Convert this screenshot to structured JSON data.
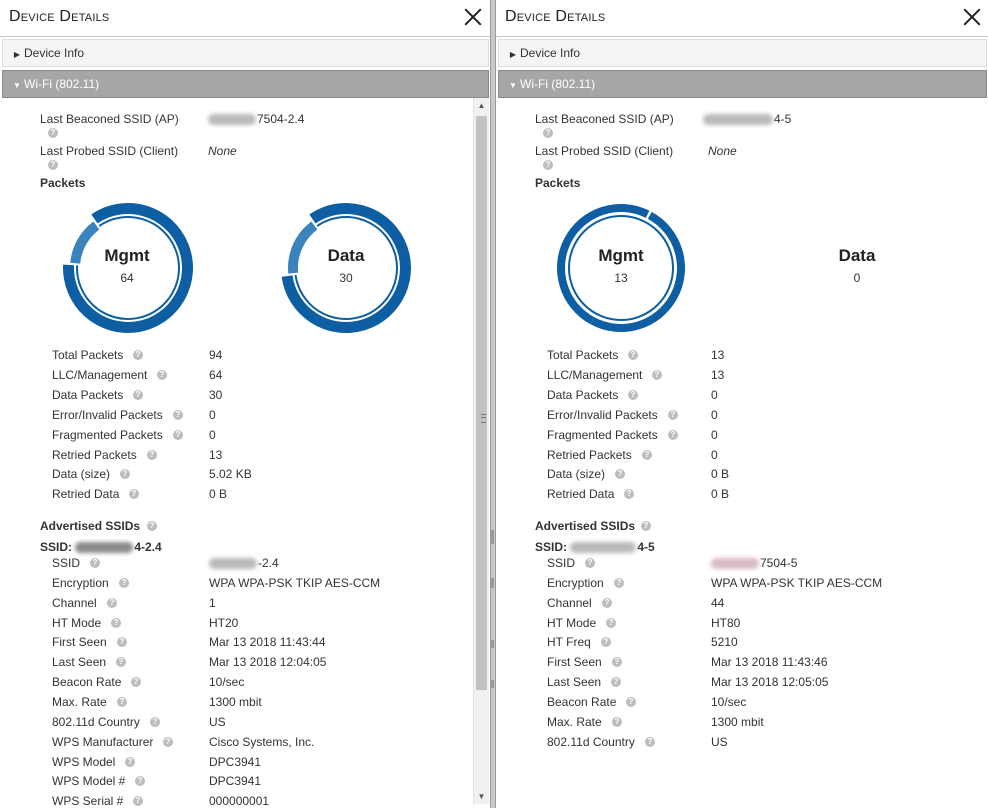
{
  "colors": {
    "dark_blue": "#0d5ea2",
    "light_blue": "#3b83bd",
    "header_bar": "#a6a6a6"
  },
  "left": {
    "title": "Device Details",
    "device_info_label": "Device Info",
    "wifi_label": "Wi-Fi (802.11)",
    "last_beaconed_label": "Last Beaconed SSID (AP)",
    "last_beaconed_value": "7504-2.4",
    "last_probed_label": "Last Probed SSID (Client)",
    "last_probed_value": "None",
    "packets_heading": "Packets",
    "donuts": [
      {
        "name": "Mgmt",
        "value": "64",
        "segments": [
          {
            "fraction": 0.86,
            "color": "#0d5ea2"
          },
          {
            "fraction": 0.14,
            "color": "#3b83bd"
          }
        ]
      },
      {
        "name": "Data",
        "value": "30",
        "segments": [
          {
            "fraction": 0.83,
            "color": "#0d5ea2"
          },
          {
            "fraction": 0.17,
            "color": "#3b83bd"
          }
        ]
      }
    ],
    "stats": [
      {
        "label": "Total Packets",
        "value": "94"
      },
      {
        "label": "LLC/Management",
        "value": "64"
      },
      {
        "label": "Data Packets",
        "value": "30"
      },
      {
        "label": "Error/Invalid Packets",
        "value": "0"
      },
      {
        "label": "Fragmented Packets",
        "value": "0"
      },
      {
        "label": "Retried Packets",
        "value": "13"
      },
      {
        "label": "Data (size)",
        "value": "5.02 KB"
      },
      {
        "label": "Retried Data",
        "value": "0 B"
      }
    ],
    "advertised_heading": "Advertised SSIDs",
    "ssid_prefix": "SSID:",
    "ssid_suffix": "4-2.4",
    "ssid_rows": [
      {
        "label": "SSID",
        "value": "-2.4"
      },
      {
        "label": "Encryption",
        "value": "WPA WPA-PSK TKIP AES-CCM"
      },
      {
        "label": "Channel",
        "value": "1"
      },
      {
        "label": "HT Mode",
        "value": "HT20"
      },
      {
        "label": "First Seen",
        "value": "Mar 13 2018 11:43:44"
      },
      {
        "label": "Last Seen",
        "value": "Mar 13 2018 12:04:05"
      },
      {
        "label": "Beacon Rate",
        "value": "10/sec"
      },
      {
        "label": "Max. Rate",
        "value": "1300 mbit"
      },
      {
        "label": "802.11d Country",
        "value": "US"
      },
      {
        "label": "WPS Manufacturer",
        "value": "Cisco Systems, Inc."
      },
      {
        "label": "WPS Model",
        "value": "DPC3941"
      },
      {
        "label": "WPS Model #",
        "value": "DPC3941"
      },
      {
        "label": "WPS Serial #",
        "value": "000000001"
      }
    ]
  },
  "right": {
    "title": "Device Details",
    "device_info_label": "Device Info",
    "wifi_label": "Wi-Fi (802.11)",
    "last_beaconed_label": "Last Beaconed SSID (AP)",
    "last_beaconed_value": "4-5",
    "last_probed_label": "Last Probed SSID (Client)",
    "last_probed_value": "None",
    "packets_heading": "Packets",
    "donuts": [
      {
        "name": "Mgmt",
        "value": "13",
        "segments": [
          {
            "fraction": 1.0,
            "color": "#0d5ea2"
          }
        ]
      },
      {
        "name": "Data",
        "value": "0",
        "segments": []
      }
    ],
    "stats": [
      {
        "label": "Total Packets",
        "value": "13"
      },
      {
        "label": "LLC/Management",
        "value": "13"
      },
      {
        "label": "Data Packets",
        "value": "0"
      },
      {
        "label": "Error/Invalid Packets",
        "value": "0"
      },
      {
        "label": "Fragmented Packets",
        "value": "0"
      },
      {
        "label": "Retried Packets",
        "value": "0"
      },
      {
        "label": "Data (size)",
        "value": "0 B"
      },
      {
        "label": "Retried Data",
        "value": "0 B"
      }
    ],
    "advertised_heading": "Advertised SSIDs",
    "ssid_prefix": "SSID:",
    "ssid_suffix": "4-5",
    "ssid_rows": [
      {
        "label": "SSID",
        "value": "7504-5"
      },
      {
        "label": "Encryption",
        "value": "WPA WPA-PSK TKIP AES-CCM"
      },
      {
        "label": "Channel",
        "value": "44"
      },
      {
        "label": "HT Mode",
        "value": "HT80"
      },
      {
        "label": "HT Freq",
        "value": "5210"
      },
      {
        "label": "First Seen",
        "value": "Mar 13 2018 11:43:46"
      },
      {
        "label": "Last Seen",
        "value": "Mar 13 2018 12:05:05"
      },
      {
        "label": "Beacon Rate",
        "value": "10/sec"
      },
      {
        "label": "Max. Rate",
        "value": "1300 mbit"
      },
      {
        "label": "802.11d Country",
        "value": "US"
      }
    ]
  }
}
